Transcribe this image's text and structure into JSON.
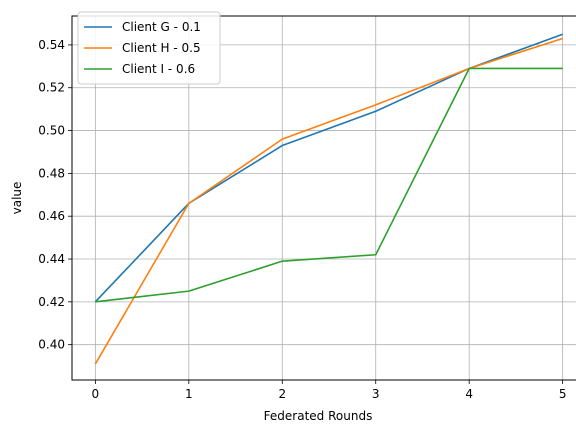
{
  "chart_data": {
    "type": "line",
    "title": "",
    "xlabel": "Federated Rounds",
    "ylabel": "value",
    "x": [
      0,
      1,
      2,
      3,
      4,
      5
    ],
    "xticks": [
      "0",
      "1",
      "2",
      "3",
      "4",
      "5"
    ],
    "yticks": [
      "0.40",
      "0.42",
      "0.44",
      "0.46",
      "0.48",
      "0.50",
      "0.52",
      "0.54"
    ],
    "xlim": [
      -0.25,
      5.25
    ],
    "ylim": [
      0.3835,
      0.5535
    ],
    "grid": true,
    "legend_position": "top-left",
    "series": [
      {
        "name": "Client G - 0.1",
        "color": "#1f77b4",
        "values": [
          0.42,
          0.466,
          0.493,
          0.509,
          0.529,
          0.545
        ]
      },
      {
        "name": "Client H - 0.5",
        "color": "#ff7f0e",
        "values": [
          0.391,
          0.466,
          0.496,
          0.512,
          0.529,
          0.543
        ]
      },
      {
        "name": "Client I - 0.6",
        "color": "#2ca02c",
        "values": [
          0.42,
          0.425,
          0.439,
          0.442,
          0.529,
          0.529
        ]
      }
    ]
  }
}
